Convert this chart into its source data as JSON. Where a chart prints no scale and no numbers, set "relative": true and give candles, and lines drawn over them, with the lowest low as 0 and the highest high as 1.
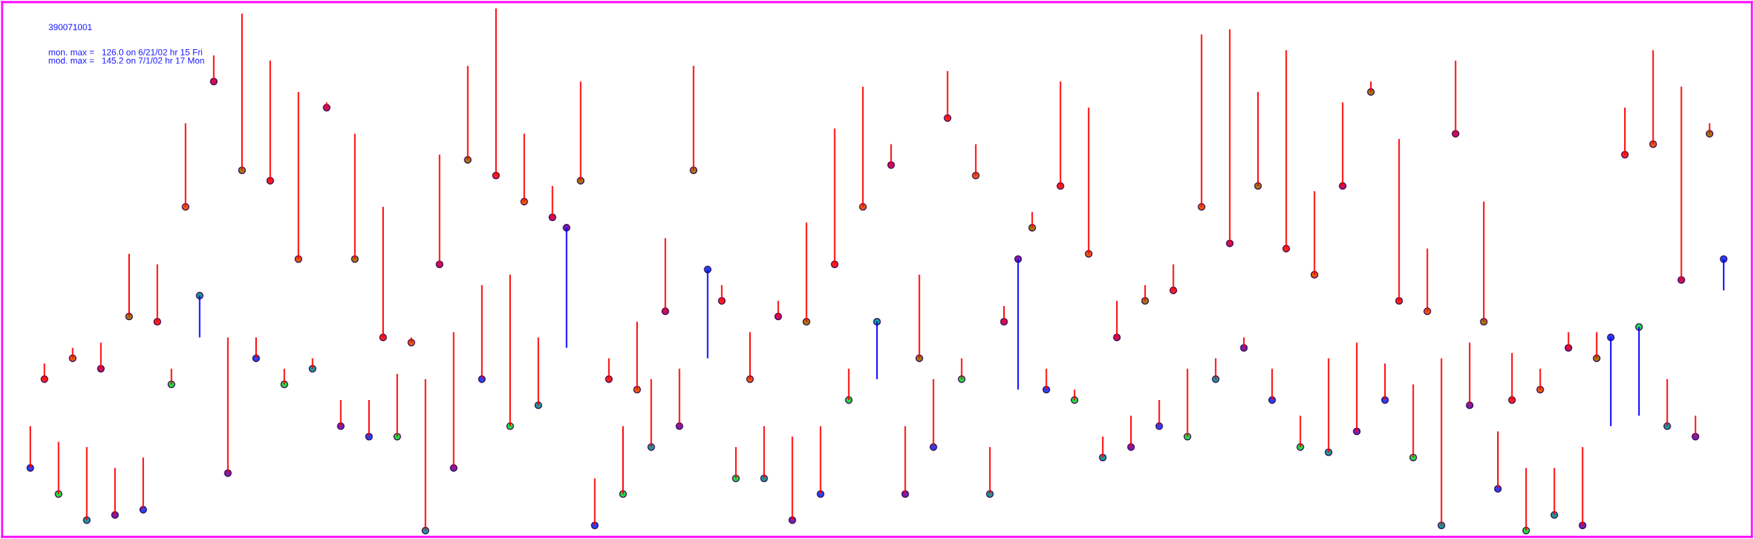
{
  "chart_data": {
    "type": "candlestick",
    "title": "390071001",
    "annotations": [
      "mon. max =   126.0 on 6/21/02 hr 15 Fri",
      "mod. max =   145.2 on 7/1/02 hr 17 Mon"
    ],
    "relative": true,
    "categories": [
      null,
      null,
      null,
      null,
      null,
      null,
      null,
      null,
      null,
      null,
      null,
      null,
      null,
      null,
      null,
      null,
      null,
      null,
      null,
      null,
      null,
      null,
      null,
      null,
      null,
      null,
      null,
      null,
      null,
      null,
      null,
      null,
      null,
      null,
      null,
      null,
      null,
      null,
      null,
      null,
      null,
      null,
      null,
      null,
      null,
      null,
      null,
      null,
      null,
      null,
      null,
      null,
      null,
      null,
      null,
      null,
      null,
      null,
      null,
      null,
      null,
      null,
      null,
      null,
      null,
      null,
      null,
      null,
      null,
      null,
      null,
      null,
      null,
      null,
      null,
      null,
      null,
      null,
      null,
      null,
      null,
      null,
      null,
      null,
      null,
      null,
      null,
      null,
      null,
      null,
      null,
      null,
      null,
      null,
      null,
      null,
      null,
      null,
      null,
      null,
      null,
      null,
      null,
      null,
      null,
      null,
      null,
      null,
      null,
      null,
      null,
      null,
      null,
      null,
      null,
      null,
      null,
      null,
      null,
      null,
      null
    ],
    "ohlc": [
      [
        0.12,
        0.2,
        0.12,
        0.2
      ],
      [
        0.29,
        0.32,
        0.29,
        0.32
      ],
      [
        0.07,
        0.17,
        0.07,
        0.17
      ],
      [
        0.33,
        0.35,
        0.33,
        0.35
      ],
      [
        0.02,
        0.16,
        0.02,
        0.16
      ],
      [
        0.31,
        0.36,
        0.31,
        0.36
      ],
      [
        0.03,
        0.12,
        0.03,
        0.12
      ],
      [
        0.41,
        0.53,
        0.41,
        0.53
      ],
      [
        0.04,
        0.14,
        0.04,
        0.14
      ],
      [
        0.4,
        0.51,
        0.4,
        0.51
      ],
      [
        0.28,
        0.31,
        0.28,
        0.31
      ],
      [
        0.62,
        0.78,
        0.62,
        0.78
      ],
      [
        0.45,
        0.45,
        0.37,
        0.37
      ],
      [
        0.86,
        0.91,
        0.86,
        0.91
      ],
      [
        0.11,
        0.37,
        0.11,
        0.37
      ],
      [
        0.69,
        0.99,
        0.69,
        0.99
      ],
      [
        0.33,
        0.37,
        0.33,
        0.37
      ],
      [
        0.67,
        0.9,
        0.67,
        0.9
      ],
      [
        0.28,
        0.31,
        0.28,
        0.31
      ],
      [
        0.52,
        0.84,
        0.52,
        0.84
      ],
      [
        0.31,
        0.33,
        0.31,
        0.33
      ],
      [
        0.81,
        0.82,
        0.81,
        0.82
      ],
      [
        0.2,
        0.25,
        0.2,
        0.25
      ],
      [
        0.52,
        0.76,
        0.52,
        0.76
      ],
      [
        0.18,
        0.25,
        0.18,
        0.25
      ],
      [
        0.37,
        0.62,
        0.37,
        0.62
      ],
      [
        0.18,
        0.3,
        0.18,
        0.3
      ],
      [
        0.36,
        0.37,
        0.36,
        0.37
      ],
      [
        0.0,
        0.29,
        0.0,
        0.29
      ],
      [
        0.51,
        0.72,
        0.51,
        0.72
      ],
      [
        0.12,
        0.38,
        0.12,
        0.38
      ],
      [
        0.71,
        0.89,
        0.71,
        0.89
      ],
      [
        0.29,
        0.47,
        0.29,
        0.47
      ],
      [
        0.68,
        1.0,
        0.68,
        1.0
      ],
      [
        0.2,
        0.49,
        0.2,
        0.49
      ],
      [
        0.63,
        0.76,
        0.63,
        0.76
      ],
      [
        0.24,
        0.37,
        0.24,
        0.37
      ],
      [
        0.6,
        0.66,
        0.6,
        0.66
      ],
      [
        0.58,
        0.58,
        0.35,
        0.35
      ],
      [
        0.67,
        0.86,
        0.67,
        0.86
      ],
      [
        0.01,
        0.1,
        0.01,
        0.1
      ],
      [
        0.29,
        0.33,
        0.29,
        0.33
      ],
      [
        0.07,
        0.2,
        0.07,
        0.2
      ],
      [
        0.27,
        0.4,
        0.27,
        0.4
      ],
      [
        0.16,
        0.29,
        0.16,
        0.29
      ],
      [
        0.42,
        0.56,
        0.42,
        0.56
      ],
      [
        0.2,
        0.31,
        0.2,
        0.31
      ],
      [
        0.69,
        0.89,
        0.69,
        0.89
      ],
      [
        0.5,
        0.5,
        0.33,
        0.33
      ],
      [
        0.44,
        0.47,
        0.44,
        0.47
      ],
      [
        0.1,
        0.16,
        0.1,
        0.16
      ],
      [
        0.29,
        0.38,
        0.29,
        0.38
      ],
      [
        0.1,
        0.2,
        0.1,
        0.2
      ],
      [
        0.41,
        0.44,
        0.41,
        0.44
      ],
      [
        0.02,
        0.18,
        0.02,
        0.18
      ],
      [
        0.4,
        0.59,
        0.4,
        0.59
      ],
      [
        0.07,
        0.2,
        0.07,
        0.2
      ],
      [
        0.51,
        0.77,
        0.51,
        0.77
      ],
      [
        0.25,
        0.31,
        0.25,
        0.31
      ],
      [
        0.62,
        0.85,
        0.62,
        0.85
      ],
      [
        0.4,
        0.4,
        0.29,
        0.29
      ],
      [
        0.7,
        0.74,
        0.7,
        0.74
      ],
      [
        0.07,
        0.2,
        0.07,
        0.2
      ],
      [
        0.33,
        0.49,
        0.33,
        0.49
      ],
      [
        0.16,
        0.29,
        0.16,
        0.29
      ],
      [
        0.79,
        0.88,
        0.79,
        0.88
      ],
      [
        0.29,
        0.33,
        0.29,
        0.33
      ],
      [
        0.68,
        0.74,
        0.68,
        0.74
      ],
      [
        0.07,
        0.16,
        0.07,
        0.16
      ],
      [
        0.4,
        0.43,
        0.4,
        0.43
      ],
      [
        0.52,
        0.52,
        0.27,
        0.27
      ],
      [
        0.58,
        0.61,
        0.58,
        0.61
      ],
      [
        0.27,
        0.31,
        0.27,
        0.31
      ],
      [
        0.66,
        0.86,
        0.66,
        0.86
      ],
      [
        0.25,
        0.27,
        0.25,
        0.27
      ],
      [
        0.53,
        0.81,
        0.53,
        0.81
      ],
      [
        0.14,
        0.18,
        0.14,
        0.18
      ],
      [
        0.37,
        0.44,
        0.37,
        0.44
      ],
      [
        0.16,
        0.22,
        0.16,
        0.22
      ],
      [
        0.44,
        0.47,
        0.44,
        0.47
      ],
      [
        0.2,
        0.25,
        0.2,
        0.25
      ],
      [
        0.46,
        0.51,
        0.46,
        0.51
      ],
      [
        0.18,
        0.31,
        0.18,
        0.31
      ],
      [
        0.62,
        0.95,
        0.62,
        0.95
      ],
      [
        0.29,
        0.33,
        0.29,
        0.33
      ],
      [
        0.55,
        0.96,
        0.55,
        0.96
      ],
      [
        0.35,
        0.37,
        0.35,
        0.37
      ],
      [
        0.66,
        0.84,
        0.66,
        0.84
      ],
      [
        0.25,
        0.31,
        0.25,
        0.31
      ],
      [
        0.54,
        0.92,
        0.54,
        0.92
      ],
      [
        0.16,
        0.22,
        0.16,
        0.22
      ],
      [
        0.49,
        0.65,
        0.49,
        0.65
      ],
      [
        0.15,
        0.33,
        0.15,
        0.33
      ],
      [
        0.66,
        0.82,
        0.66,
        0.82
      ],
      [
        0.19,
        0.36,
        0.19,
        0.36
      ],
      [
        0.84,
        0.86,
        0.84,
        0.86
      ],
      [
        0.25,
        0.32,
        0.25,
        0.32
      ],
      [
        0.44,
        0.75,
        0.44,
        0.75
      ],
      [
        0.14,
        0.28,
        0.14,
        0.28
      ],
      [
        0.42,
        0.54,
        0.42,
        0.54
      ],
      [
        0.01,
        0.33,
        0.01,
        0.33
      ],
      [
        0.76,
        0.9,
        0.76,
        0.9
      ],
      [
        0.24,
        0.36,
        0.24,
        0.36
      ],
      [
        0.4,
        0.63,
        0.4,
        0.63
      ],
      [
        0.08,
        0.19,
        0.08,
        0.19
      ],
      [
        0.25,
        0.34,
        0.25,
        0.34
      ],
      [
        0.0,
        0.12,
        0.0,
        0.12
      ],
      [
        0.27,
        0.31,
        0.27,
        0.31
      ],
      [
        0.03,
        0.12,
        0.03,
        0.12
      ],
      [
        0.35,
        0.38,
        0.35,
        0.38
      ],
      [
        0.01,
        0.16,
        0.01,
        0.16
      ],
      [
        0.33,
        0.38,
        0.33,
        0.38
      ],
      [
        0.37,
        0.37,
        0.2,
        0.2
      ],
      [
        0.72,
        0.81,
        0.72,
        0.81
      ],
      [
        0.39,
        0.39,
        0.22,
        0.22
      ],
      [
        0.74,
        0.92,
        0.74,
        0.92
      ],
      [
        0.2,
        0.29,
        0.2,
        0.29
      ],
      [
        0.48,
        0.85,
        0.48,
        0.85
      ],
      [
        0.18,
        0.22,
        0.18,
        0.22
      ],
      [
        0.76,
        0.78,
        0.76,
        0.78
      ],
      [
        0.52,
        0.52,
        0.46,
        0.46
      ]
    ],
    "colors": [
      "#ff0000",
      "#ff0000",
      "#ff0000",
      "#ff0000",
      "#ff0000",
      "#ff0000",
      "#ff0000",
      "#ff0000",
      "#ff0000",
      "#ff0000",
      "#ff0000",
      "#ff0000",
      "#0000ff",
      "#ff0000",
      "#ff0000",
      "#ff0000",
      "#ff0000",
      "#ff0000",
      "#ff0000",
      "#ff0000",
      "#ff0000",
      "#ff0000",
      "#ff0000",
      "#ff0000",
      "#ff0000",
      "#ff0000",
      "#ff0000",
      "#ff0000",
      "#ff0000",
      "#ff0000",
      "#ff0000",
      "#ff0000",
      "#ff0000",
      "#ff0000",
      "#ff0000",
      "#ff0000",
      "#ff0000",
      "#ff0000",
      "#0000ff",
      "#ff0000",
      "#ff0000",
      "#ff0000",
      "#ff0000",
      "#ff0000",
      "#ff0000",
      "#ff0000",
      "#ff0000",
      "#ff0000",
      "#0000ff",
      "#ff0000",
      "#ff0000",
      "#ff0000",
      "#ff0000",
      "#ff0000",
      "#ff0000",
      "#ff0000",
      "#ff0000",
      "#ff0000",
      "#ff0000",
      "#ff0000",
      "#0000ff",
      "#ff0000",
      "#ff0000",
      "#ff0000",
      "#ff0000",
      "#ff0000",
      "#ff0000",
      "#ff0000",
      "#ff0000",
      "#ff0000",
      "#0000ff",
      "#ff0000",
      "#ff0000",
      "#ff0000",
      "#ff0000",
      "#ff0000",
      "#ff0000",
      "#ff0000",
      "#ff0000",
      "#ff0000",
      "#ff0000",
      "#ff0000",
      "#ff0000",
      "#ff0000",
      "#ff0000",
      "#ff0000",
      "#ff0000",
      "#ff0000",
      "#ff0000",
      "#ff0000",
      "#ff0000",
      "#ff0000",
      "#ff0000",
      "#ff0000",
      "#ff0000",
      "#ff0000",
      "#ff0000",
      "#ff0000",
      "#ff0000",
      "#ff0000",
      "#ff0000",
      "#ff0000",
      "#ff0000",
      "#ff0000",
      "#ff0000",
      "#ff0000",
      "#ff0000",
      "#ff0000",
      "#ff0000",
      "#ff0000",
      "#ff0000",
      "#ff0000",
      "#0000ff",
      "#ff0000",
      "#0000ff",
      "#ff0000",
      "#ff0000",
      "#ff0000",
      "#ff0000",
      "#ff0000",
      "#0000ff"
    ],
    "series": [
      {
        "type": "scatter",
        "marker": "circle",
        "values": [
          0.12,
          0.29,
          0.07,
          0.33,
          0.02,
          0.31,
          0.03,
          0.41,
          0.04,
          0.4,
          0.28,
          0.62,
          0.45,
          0.86,
          0.11,
          0.69,
          0.33,
          0.67,
          0.28,
          0.52,
          0.31,
          0.81,
          0.2,
          0.52,
          0.18,
          0.37,
          0.18,
          0.36,
          0.0,
          0.51,
          0.12,
          0.71,
          0.29,
          0.68,
          0.2,
          0.63,
          0.24,
          0.6,
          0.58,
          0.67,
          0.01,
          0.29,
          0.07,
          0.27,
          0.16,
          0.42,
          0.2,
          0.69,
          0.5,
          0.44,
          0.1,
          0.29,
          0.1,
          0.41,
          0.02,
          0.4,
          0.07,
          0.51,
          0.25,
          0.62,
          0.4,
          0.7,
          0.07,
          0.33,
          0.16,
          0.79,
          0.29,
          0.68,
          0.07,
          0.4,
          0.52,
          0.58,
          0.27,
          0.66,
          0.25,
          0.53,
          0.14,
          0.37,
          0.16,
          0.44,
          0.2,
          0.46,
          0.18,
          0.62,
          0.29,
          0.55,
          0.35,
          0.66,
          0.25,
          0.54,
          0.16,
          0.49,
          0.15,
          0.66,
          0.19,
          0.84,
          0.25,
          0.44,
          0.14,
          0.42,
          0.01,
          0.76,
          0.24,
          0.4,
          0.08,
          0.25,
          0.0,
          0.27,
          0.03,
          0.35,
          0.01,
          0.33,
          0.37,
          0.72,
          0.39,
          0.74,
          0.2,
          0.48,
          0.18,
          0.76,
          0.52
        ],
        "colors": [
          "#2244ff",
          "#ff2020",
          "#22dd44",
          "#e85a10",
          "#1a9a9a",
          "#c81060",
          "#7a20b0",
          "#a07a10",
          "#2244ff",
          "#ff2020",
          "#22dd44",
          "#e85a10",
          "#1a9a9a",
          "#c81060",
          "#7a20b0",
          "#a07a10",
          "#2244ff",
          "#ff2020",
          "#22dd44",
          "#e85a10",
          "#1a9a9a",
          "#c81060",
          "#7a20b0",
          "#a07a10",
          "#2244ff",
          "#ff2020",
          "#22dd44",
          "#e85a10",
          "#1a9a9a",
          "#c81060",
          "#7a20b0",
          "#a07a10",
          "#2244ff",
          "#ff2020",
          "#22dd44",
          "#e85a10",
          "#1a9a9a",
          "#c81060",
          "#7a20b0",
          "#a07a10",
          "#2244ff",
          "#ff2020",
          "#22dd44",
          "#e85a10",
          "#1a9a9a",
          "#c81060",
          "#7a20b0",
          "#a07a10",
          "#2244ff",
          "#ff2020",
          "#22dd44",
          "#e85a10",
          "#1a9a9a",
          "#c81060",
          "#7a20b0",
          "#a07a10",
          "#2244ff",
          "#ff2020",
          "#22dd44",
          "#e85a10",
          "#1a9a9a",
          "#c81060",
          "#7a20b0",
          "#a07a10",
          "#2244ff",
          "#ff2020",
          "#22dd44",
          "#e85a10",
          "#1a9a9a",
          "#c81060",
          "#7a20b0",
          "#a07a10",
          "#2244ff",
          "#ff2020",
          "#22dd44",
          "#e85a10",
          "#1a9a9a",
          "#c81060",
          "#7a20b0",
          "#a07a10",
          "#2244ff",
          "#ff2020",
          "#22dd44",
          "#e85a10",
          "#1a9a9a",
          "#c81060",
          "#7a20b0",
          "#a07a10",
          "#2244ff",
          "#ff2020",
          "#22dd44",
          "#e85a10",
          "#1a9a9a",
          "#c81060",
          "#7a20b0",
          "#a07a10",
          "#2244ff",
          "#ff2020",
          "#22dd44",
          "#e85a10",
          "#1a9a9a",
          "#c81060",
          "#7a20b0",
          "#a07a10",
          "#2244ff",
          "#ff2020",
          "#22dd44",
          "#e85a10",
          "#1a9a9a",
          "#c81060",
          "#7a20b0",
          "#a07a10",
          "#2244ff",
          "#ff2020",
          "#22dd44",
          "#e85a10",
          "#1a9a9a",
          "#c81060",
          "#7a20b0",
          "#a07a10",
          "#2244ff"
        ]
      }
    ]
  }
}
